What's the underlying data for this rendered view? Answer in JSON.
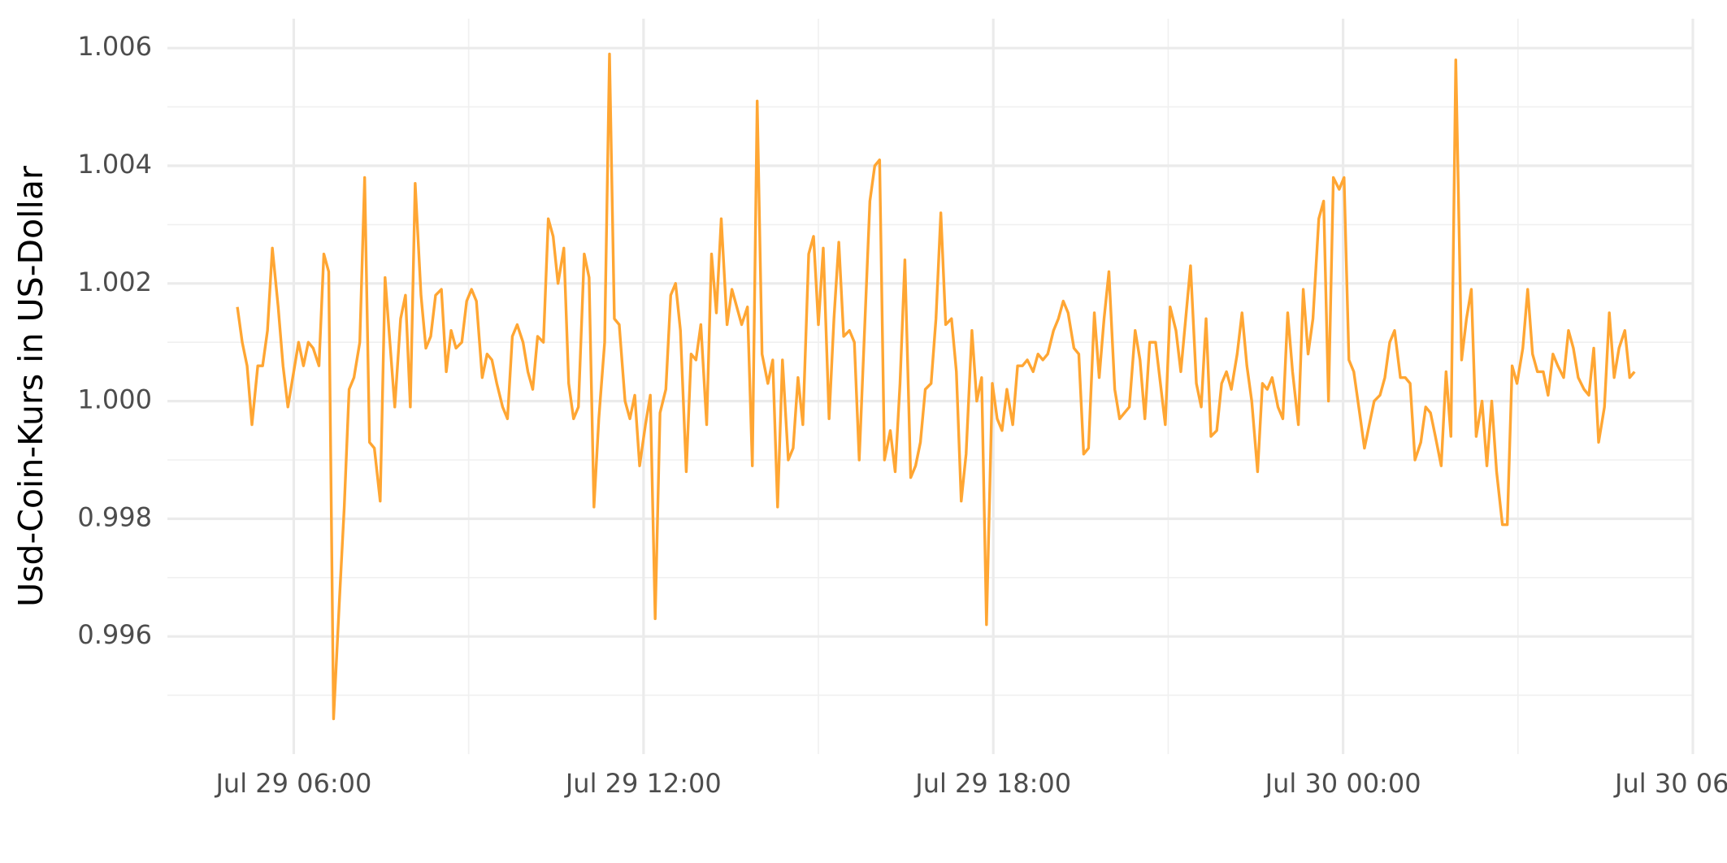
{
  "chart_data": {
    "type": "line",
    "y_label": "Usd-Coin-Kurs in US-Dollar",
    "x": [
      "Jul 29 05:02",
      "Jul 29 05:07",
      "Jul 29 05:12",
      "Jul 29 05:17",
      "Jul 29 05:23",
      "Jul 29 05:28",
      "Jul 29 05:33",
      "Jul 29 05:38",
      "Jul 29 05:44",
      "Jul 29 05:49",
      "Jul 29 05:54",
      "Jul 29 05:59",
      "Jul 29 06:05",
      "Jul 29 06:10",
      "Jul 29 06:15",
      "Jul 29 06:20",
      "Jul 29 06:26",
      "Jul 29 06:31",
      "Jul 29 06:36",
      "Jul 29 06:41",
      "Jul 29 06:47",
      "Jul 29 06:52",
      "Jul 29 06:57",
      "Jul 29 07:02",
      "Jul 29 07:08",
      "Jul 29 07:13",
      "Jul 29 07:18",
      "Jul 29 07:23",
      "Jul 29 07:29",
      "Jul 29 07:34",
      "Jul 29 07:39",
      "Jul 29 07:44",
      "Jul 29 07:50",
      "Jul 29 07:55",
      "Jul 29 08:00",
      "Jul 29 08:05",
      "Jul 29 08:11",
      "Jul 29 08:16",
      "Jul 29 08:21",
      "Jul 29 08:26",
      "Jul 29 08:32",
      "Jul 29 08:37",
      "Jul 29 08:42",
      "Jul 29 08:47",
      "Jul 29 08:53",
      "Jul 29 08:58",
      "Jul 29 09:03",
      "Jul 29 09:08",
      "Jul 29 09:14",
      "Jul 29 09:19",
      "Jul 29 09:24",
      "Jul 29 09:29",
      "Jul 29 09:35",
      "Jul 29 09:40",
      "Jul 29 09:45",
      "Jul 29 09:50",
      "Jul 29 09:56",
      "Jul 29 10:01",
      "Jul 29 10:06",
      "Jul 29 10:11",
      "Jul 29 10:17",
      "Jul 29 10:22",
      "Jul 29 10:27",
      "Jul 29 10:32",
      "Jul 29 10:38",
      "Jul 29 10:43",
      "Jul 29 10:48",
      "Jul 29 10:53",
      "Jul 29 10:59",
      "Jul 29 11:04",
      "Jul 29 11:09",
      "Jul 29 11:14",
      "Jul 29 11:20",
      "Jul 29 11:25",
      "Jul 29 11:30",
      "Jul 29 11:35",
      "Jul 29 11:41",
      "Jul 29 11:46",
      "Jul 29 11:51",
      "Jul 29 11:56",
      "Jul 29 12:02",
      "Jul 29 12:07",
      "Jul 29 12:12",
      "Jul 29 12:17",
      "Jul 29 12:23",
      "Jul 29 12:28",
      "Jul 29 12:33",
      "Jul 29 12:38",
      "Jul 29 12:44",
      "Jul 29 12:49",
      "Jul 29 12:54",
      "Jul 29 12:59",
      "Jul 29 13:05",
      "Jul 29 13:10",
      "Jul 29 13:15",
      "Jul 29 13:20",
      "Jul 29 13:26",
      "Jul 29 13:31",
      "Jul 29 13:36",
      "Jul 29 13:41",
      "Jul 29 13:47",
      "Jul 29 13:52",
      "Jul 29 13:57",
      "Jul 29 14:02",
      "Jul 29 14:08",
      "Jul 29 14:13",
      "Jul 29 14:18",
      "Jul 29 14:23",
      "Jul 29 14:29",
      "Jul 29 14:34",
      "Jul 29 14:39",
      "Jul 29 14:44",
      "Jul 29 14:50",
      "Jul 29 14:55",
      "Jul 29 15:00",
      "Jul 29 15:05",
      "Jul 29 15:11",
      "Jul 29 15:16",
      "Jul 29 15:21",
      "Jul 29 15:26",
      "Jul 29 15:32",
      "Jul 29 15:37",
      "Jul 29 15:42",
      "Jul 29 15:47",
      "Jul 29 15:53",
      "Jul 29 15:58",
      "Jul 29 16:03",
      "Jul 29 16:08",
      "Jul 29 16:14",
      "Jul 29 16:19",
      "Jul 29 16:24",
      "Jul 29 16:29",
      "Jul 29 16:35",
      "Jul 29 16:40",
      "Jul 29 16:45",
      "Jul 29 16:50",
      "Jul 29 16:56",
      "Jul 29 17:01",
      "Jul 29 17:06",
      "Jul 29 17:11",
      "Jul 29 17:17",
      "Jul 29 17:22",
      "Jul 29 17:27",
      "Jul 29 17:32",
      "Jul 29 17:38",
      "Jul 29 17:43",
      "Jul 29 17:48",
      "Jul 29 17:53",
      "Jul 29 17:59",
      "Jul 29 18:04",
      "Jul 29 18:09",
      "Jul 29 18:14",
      "Jul 29 18:20",
      "Jul 29 18:25",
      "Jul 29 18:30",
      "Jul 29 18:35",
      "Jul 29 18:41",
      "Jul 29 18:46",
      "Jul 29 18:51",
      "Jul 29 18:56",
      "Jul 29 19:02",
      "Jul 29 19:07",
      "Jul 29 19:12",
      "Jul 29 19:17",
      "Jul 29 19:23",
      "Jul 29 19:28",
      "Jul 29 19:33",
      "Jul 29 19:38",
      "Jul 29 19:44",
      "Jul 29 19:49",
      "Jul 29 19:54",
      "Jul 29 19:59",
      "Jul 29 20:05",
      "Jul 29 20:10",
      "Jul 29 20:15",
      "Jul 29 20:20",
      "Jul 29 20:26",
      "Jul 29 20:31",
      "Jul 29 20:36",
      "Jul 29 20:41",
      "Jul 29 20:47",
      "Jul 29 20:52",
      "Jul 29 20:57",
      "Jul 29 21:02",
      "Jul 29 21:08",
      "Jul 29 21:13",
      "Jul 29 21:18",
      "Jul 29 21:23",
      "Jul 29 21:29",
      "Jul 29 21:34",
      "Jul 29 21:39",
      "Jul 29 21:44",
      "Jul 29 21:50",
      "Jul 29 21:55",
      "Jul 29 22:00",
      "Jul 29 22:05",
      "Jul 29 22:11",
      "Jul 29 22:16",
      "Jul 29 22:21",
      "Jul 29 22:26",
      "Jul 29 22:32",
      "Jul 29 22:37",
      "Jul 29 22:42",
      "Jul 29 22:47",
      "Jul 29 22:53",
      "Jul 29 22:58",
      "Jul 29 23:03",
      "Jul 29 23:08",
      "Jul 29 23:14",
      "Jul 29 23:19",
      "Jul 29 23:24",
      "Jul 29 23:29",
      "Jul 29 23:35",
      "Jul 29 23:40",
      "Jul 29 23:45",
      "Jul 29 23:50",
      "Jul 29 23:56",
      "Jul 30 00:01",
      "Jul 30 00:06",
      "Jul 30 00:11",
      "Jul 30 00:17",
      "Jul 30 00:22",
      "Jul 30 00:27",
      "Jul 30 00:32",
      "Jul 30 00:38",
      "Jul 30 00:43",
      "Jul 30 00:48",
      "Jul 30 00:53",
      "Jul 30 00:59",
      "Jul 30 01:04",
      "Jul 30 01:09",
      "Jul 30 01:14",
      "Jul 30 01:20",
      "Jul 30 01:25",
      "Jul 30 01:30",
      "Jul 30 01:35",
      "Jul 30 01:41",
      "Jul 30 01:46",
      "Jul 30 01:51",
      "Jul 30 01:56",
      "Jul 30 02:02",
      "Jul 30 02:07",
      "Jul 30 02:12",
      "Jul 30 02:17",
      "Jul 30 02:23",
      "Jul 30 02:28",
      "Jul 30 02:33",
      "Jul 30 02:38",
      "Jul 30 02:44",
      "Jul 30 02:49",
      "Jul 30 02:54",
      "Jul 30 02:59",
      "Jul 30 03:05",
      "Jul 30 03:10",
      "Jul 30 03:15",
      "Jul 30 03:20",
      "Jul 30 03:26",
      "Jul 30 03:31",
      "Jul 30 03:36",
      "Jul 30 03:41",
      "Jul 30 03:47",
      "Jul 30 03:52",
      "Jul 30 03:57",
      "Jul 30 04:02",
      "Jul 30 04:08",
      "Jul 30 04:13",
      "Jul 30 04:18",
      "Jul 30 04:23",
      "Jul 30 04:29",
      "Jul 30 04:34",
      "Jul 30 04:39",
      "Jul 30 04:44",
      "Jul 30 04:50",
      "Jul 30 04:55",
      "Jul 30 05:00"
    ],
    "series": [
      {
        "name": "USD Coin",
        "color": "#ffa633",
        "values": [
          1.0016,
          1.001,
          1.0006,
          0.9996,
          1.0006,
          1.0006,
          1.0012,
          1.0026,
          1.0016,
          1.0006,
          0.9999,
          1.0004,
          1.001,
          1.0006,
          1.001,
          1.0009,
          1.0006,
          1.0025,
          1.0022,
          0.9946,
          0.9966,
          0.9982,
          1.0002,
          1.0004,
          1.001,
          1.0038,
          0.9993,
          0.9992,
          0.9983,
          1.0021,
          1.001,
          0.9999,
          1.0014,
          1.0018,
          0.9999,
          1.0037,
          1.0018,
          1.0009,
          1.0011,
          1.0018,
          1.0019,
          1.0005,
          1.0012,
          1.0009,
          1.001,
          1.0017,
          1.0019,
          1.0017,
          1.0004,
          1.0008,
          1.0007,
          1.0003,
          0.9999,
          0.9997,
          1.0011,
          1.0013,
          1.001,
          1.0005,
          1.0002,
          1.0011,
          1.001,
          1.0031,
          1.0028,
          1.002,
          1.0026,
          1.0003,
          0.9997,
          0.9999,
          1.0025,
          1.0021,
          0.9982,
          0.9997,
          1.001,
          1.0059,
          1.0014,
          1.0013,
          1.0,
          0.9997,
          1.0001,
          0.9989,
          0.9996,
          1.0001,
          0.9963,
          0.9998,
          1.0002,
          1.0018,
          1.002,
          1.0012,
          0.9988,
          1.0008,
          1.0007,
          1.0013,
          0.9996,
          1.0025,
          1.0015,
          1.0031,
          1.0013,
          1.0019,
          1.0016,
          1.0013,
          1.0016,
          0.9989,
          1.0051,
          1.0008,
          1.0003,
          1.0007,
          0.9982,
          1.0007,
          0.999,
          0.9992,
          1.0004,
          0.9996,
          1.0025,
          1.0028,
          1.0013,
          1.0026,
          0.9997,
          1.0014,
          1.0027,
          1.0011,
          1.0012,
          1.001,
          0.999,
          1.001,
          1.0034,
          1.004,
          1.0041,
          0.999,
          0.9995,
          0.9988,
          1.0003,
          1.0024,
          0.9987,
          0.9989,
          0.9993,
          1.0002,
          1.0003,
          1.0014,
          1.0032,
          1.0013,
          1.0014,
          1.0005,
          0.9983,
          0.9991,
          1.0012,
          1.0,
          1.0004,
          0.9962,
          1.0003,
          0.9997,
          0.9995,
          1.0002,
          0.9996,
          1.0006,
          1.0006,
          1.0007,
          1.0005,
          1.0008,
          1.0007,
          1.0008,
          1.0012,
          1.0014,
          1.0017,
          1.0015,
          1.0009,
          1.0008,
          0.9991,
          0.9992,
          1.0015,
          1.0004,
          1.0014,
          1.0022,
          1.0002,
          0.9997,
          0.9998,
          0.9999,
          1.0012,
          1.0007,
          0.9997,
          1.001,
          1.001,
          1.0003,
          0.9996,
          1.0016,
          1.0012,
          1.0005,
          1.0014,
          1.0023,
          1.0003,
          0.9999,
          1.0014,
          0.9994,
          0.9995,
          1.0003,
          1.0005,
          1.0002,
          1.0008,
          1.0015,
          1.0006,
          1.0,
          0.9988,
          1.0003,
          1.0002,
          1.0004,
          0.9999,
          0.9997,
          1.0015,
          1.0005,
          0.9996,
          1.0019,
          1.0008,
          1.0014,
          1.0031,
          1.0034,
          1.0,
          1.0038,
          1.0036,
          1.0038,
          1.0007,
          1.0005,
          0.9998,
          0.9992,
          0.9996,
          1.0,
          1.0001,
          1.0004,
          1.001,
          1.0012,
          1.0004,
          1.0004,
          1.0003,
          0.999,
          0.9993,
          0.9999,
          0.9998,
          0.9994,
          0.9989,
          1.0005,
          0.9994,
          1.0058,
          1.0007,
          1.0014,
          1.0019,
          0.9994,
          1.0,
          0.9989,
          1.0,
          0.9988,
          0.9979,
          0.9979,
          1.0006,
          1.0003,
          1.0009,
          1.0019,
          1.0008,
          1.0005,
          1.0005,
          1.0001,
          1.0008,
          1.0006,
          1.0004,
          1.0012,
          1.0009,
          1.0004,
          1.0002,
          1.0001,
          1.0009,
          0.9993,
          0.9999,
          1.0015,
          1.0004,
          1.0009,
          1.0012,
          1.0004,
          1.0005
        ]
      }
    ],
    "xlim": [
      "Jul 29 03:50",
      "Jul 30 06:00"
    ],
    "xticks": [
      "Jul 29 06:00",
      "Jul 29 12:00",
      "Jul 29 18:00",
      "Jul 30 00:00",
      "Jul 30 06:00"
    ],
    "ylim": [
      0.994,
      1.0065
    ],
    "yticks": [
      0.996,
      0.998,
      {
        "value": 1,
        "label": "1.000"
      },
      1.002,
      1.004,
      1.006
    ],
    "grid": true
  }
}
